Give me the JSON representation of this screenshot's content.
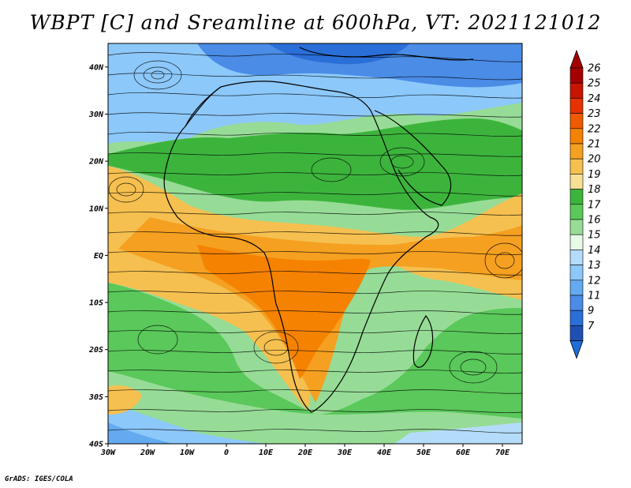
{
  "title": "WBPT [C] and Sreamline at 600hPa, VT: 2021121012",
  "footer": "GrADS: IGES/COLA",
  "map": {
    "lat_labels": [
      "40N",
      "30N",
      "20N",
      "10N",
      "EQ",
      "10S",
      "20S",
      "30S",
      "40S"
    ],
    "lat_values": [
      40,
      30,
      20,
      10,
      0,
      -10,
      -20,
      -30,
      -40
    ],
    "lon_labels": [
      "30W",
      "20W",
      "10W",
      "0",
      "10E",
      "20E",
      "30E",
      "40E",
      "50E",
      "60E",
      "70E"
    ],
    "lon_values": [
      -30,
      -20,
      -10,
      0,
      10,
      20,
      30,
      40,
      50,
      60,
      70
    ],
    "lon_range": [
      -30,
      75
    ],
    "lat_range": [
      -40,
      45
    ]
  },
  "colorbar": {
    "labels": [
      "26",
      "25",
      "24",
      "23",
      "22",
      "21",
      "20",
      "19",
      "18",
      "17",
      "16",
      "15",
      "14",
      "13",
      "12",
      "11",
      "9",
      "7"
    ],
    "colors": [
      "#a50000",
      "#c81400",
      "#e63200",
      "#f05a00",
      "#f58200",
      "#f5a020",
      "#f5c050",
      "#f5e096",
      "#3cb43c",
      "#5ac85a",
      "#96dc96",
      "#e6fae6",
      "#b4dcfa",
      "#8cc8fa",
      "#64aaf0",
      "#4a8ce6",
      "#2a6ed8",
      "#1e50b4"
    ]
  }
}
